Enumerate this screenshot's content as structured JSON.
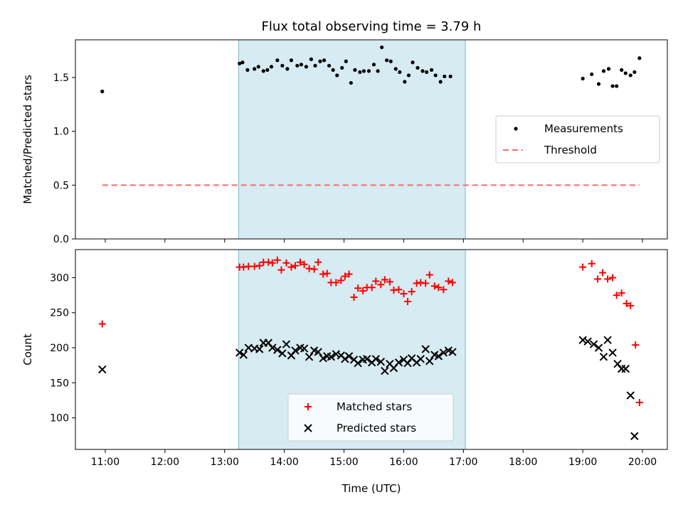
{
  "chart_data": {
    "type": "scatter",
    "title": "Flux total observing time = 3.79 h",
    "xlabel": "Time (UTC)",
    "x_unit": "hours UTC",
    "xlim": [
      "10:30",
      "20:25"
    ],
    "x_ticks": [
      {
        "value": "11:00",
        "label": "11:00"
      },
      {
        "value": "12:00",
        "label": "12:00"
      },
      {
        "value": "13:00",
        "label": "13:00"
      },
      {
        "value": "14:00",
        "label": "14:00"
      },
      {
        "value": "15:00",
        "label": "15:00"
      },
      {
        "value": "16:00",
        "label": "16:00"
      },
      {
        "value": "17:00",
        "label": "17:00"
      },
      {
        "value": "18:00",
        "label": "18:00"
      },
      {
        "value": "19:00",
        "label": "19:00"
      },
      {
        "value": "20:00",
        "label": "20:00"
      }
    ],
    "highlight_span": {
      "from": "13:14",
      "to": "17:02",
      "color": "#add8e6"
    },
    "grid": false,
    "panels": [
      {
        "id": "ratio",
        "ylabel": "Matched/Predicted stars",
        "ylim": [
          0,
          1.85
        ],
        "y_ticks": [
          "0.0",
          "0.5",
          "1.0",
          "1.5"
        ],
        "legend_position": "center-right",
        "series": [
          {
            "name": "Measurements",
            "marker": "dot",
            "color": "#000000",
            "points": [
              [
                "10:57",
                1.37
              ],
              [
                "13:15",
                1.63
              ],
              [
                "13:18",
                1.64
              ],
              [
                "13:23",
                1.57
              ],
              [
                "13:30",
                1.58
              ],
              [
                "13:34",
                1.6
              ],
              [
                "13:39",
                1.56
              ],
              [
                "13:43",
                1.57
              ],
              [
                "13:47",
                1.6
              ],
              [
                "13:53",
                1.66
              ],
              [
                "13:58",
                1.61
              ],
              [
                "14:03",
                1.58
              ],
              [
                "14:07",
                1.66
              ],
              [
                "14:13",
                1.61
              ],
              [
                "14:17",
                1.62
              ],
              [
                "14:22",
                1.6
              ],
              [
                "14:27",
                1.67
              ],
              [
                "14:31",
                1.61
              ],
              [
                "14:36",
                1.65
              ],
              [
                "14:40",
                1.66
              ],
              [
                "14:45",
                1.61
              ],
              [
                "14:49",
                1.57
              ],
              [
                "14:53",
                1.52
              ],
              [
                "14:58",
                1.59
              ],
              [
                "15:02",
                1.65
              ],
              [
                "15:07",
                1.45
              ],
              [
                "15:11",
                1.57
              ],
              [
                "15:16",
                1.55
              ],
              [
                "15:20",
                1.56
              ],
              [
                "15:25",
                1.56
              ],
              [
                "15:30",
                1.62
              ],
              [
                "15:34",
                1.56
              ],
              [
                "15:38",
                1.78
              ],
              [
                "15:43",
                1.66
              ],
              [
                "15:47",
                1.65
              ],
              [
                "15:52",
                1.58
              ],
              [
                "15:56",
                1.55
              ],
              [
                "16:01",
                1.46
              ],
              [
                "16:05",
                1.52
              ],
              [
                "16:09",
                1.64
              ],
              [
                "16:14",
                1.59
              ],
              [
                "16:19",
                1.56
              ],
              [
                "16:23",
                1.55
              ],
              [
                "16:28",
                1.57
              ],
              [
                "16:32",
                1.52
              ],
              [
                "16:37",
                1.46
              ],
              [
                "16:41",
                1.51
              ],
              [
                "16:47",
                1.51
              ],
              [
                "19:00",
                1.49
              ],
              [
                "19:09",
                1.53
              ],
              [
                "19:16",
                1.44
              ],
              [
                "19:21",
                1.56
              ],
              [
                "19:26",
                1.58
              ],
              [
                "19:30",
                1.42
              ],
              [
                "19:34",
                1.42
              ],
              [
                "19:39",
                1.57
              ],
              [
                "19:43",
                1.54
              ],
              [
                "19:48",
                1.52
              ],
              [
                "19:52",
                1.55
              ],
              [
                "19:57",
                1.68
              ]
            ]
          },
          {
            "name": "Threshold",
            "marker": "dashed-line",
            "color": "#ff6a6a",
            "points": [
              [
                "10:57",
                0.5
              ],
              [
                "19:57",
                0.5
              ]
            ]
          }
        ]
      },
      {
        "id": "counts",
        "ylabel": "Count",
        "ylim": [
          55,
          340
        ],
        "y_ticks": [
          "100",
          "150",
          "200",
          "250",
          "300"
        ],
        "legend_position": "lower-center",
        "series": [
          {
            "name": "Matched stars",
            "marker": "plus",
            "color": "#ff0000",
            "points": [
              [
                "10:57",
                234
              ],
              [
                "13:15",
                315
              ],
              [
                "13:19",
                315
              ],
              [
                "13:24",
                316
              ],
              [
                "13:30",
                316
              ],
              [
                "13:35",
                317
              ],
              [
                "13:39",
                322
              ],
              [
                "13:44",
                322
              ],
              [
                "13:48",
                321
              ],
              [
                "13:53",
                325
              ],
              [
                "13:57",
                311
              ],
              [
                "14:02",
                321
              ],
              [
                "14:07",
                315
              ],
              [
                "14:11",
                317
              ],
              [
                "14:16",
                322
              ],
              [
                "14:20",
                319
              ],
              [
                "14:25",
                313
              ],
              [
                "14:30",
                312
              ],
              [
                "14:34",
                322
              ],
              [
                "14:39",
                305
              ],
              [
                "14:43",
                306
              ],
              [
                "14:47",
                293
              ],
              [
                "14:52",
                293
              ],
              [
                "14:57",
                296
              ],
              [
                "15:01",
                302
              ],
              [
                "15:05",
                305
              ],
              [
                "15:10",
                272
              ],
              [
                "15:14",
                285
              ],
              [
                "15:19",
                281
              ],
              [
                "15:23",
                286
              ],
              [
                "15:28",
                286
              ],
              [
                "15:32",
                295
              ],
              [
                "15:37",
                290
              ],
              [
                "15:41",
                297
              ],
              [
                "15:46",
                294
              ],
              [
                "15:50",
                282
              ],
              [
                "15:55",
                283
              ],
              [
                "16:00",
                277
              ],
              [
                "16:04",
                266
              ],
              [
                "16:08",
                280
              ],
              [
                "16:13",
                292
              ],
              [
                "16:17",
                293
              ],
              [
                "16:22",
                292
              ],
              [
                "16:26",
                304
              ],
              [
                "16:31",
                288
              ],
              [
                "16:35",
                286
              ],
              [
                "16:40",
                283
              ],
              [
                "16:45",
                295
              ],
              [
                "16:49",
                293
              ],
              [
                "19:00",
                315
              ],
              [
                "19:09",
                320
              ],
              [
                "19:15",
                298
              ],
              [
                "19:20",
                307
              ],
              [
                "19:25",
                298
              ],
              [
                "19:30",
                300
              ],
              [
                "19:34",
                275
              ],
              [
                "19:39",
                278
              ],
              [
                "19:44",
                263
              ],
              [
                "19:48",
                260
              ],
              [
                "19:53",
                204
              ],
              [
                "19:57",
                122
              ]
            ]
          },
          {
            "name": "Predicted stars",
            "marker": "x",
            "color": "#000000",
            "points": [
              [
                "10:57",
                169
              ],
              [
                "13:15",
                193
              ],
              [
                "13:19",
                190
              ],
              [
                "13:24",
                200
              ],
              [
                "13:30",
                199
              ],
              [
                "13:35",
                198
              ],
              [
                "13:39",
                207
              ],
              [
                "13:44",
                207
              ],
              [
                "13:48",
                200
              ],
              [
                "13:53",
                197
              ],
              [
                "13:58",
                192
              ],
              [
                "14:02",
                205
              ],
              [
                "14:07",
                189
              ],
              [
                "14:11",
                196
              ],
              [
                "14:16",
                200
              ],
              [
                "14:20",
                199
              ],
              [
                "14:25",
                187
              ],
              [
                "14:30",
                196
              ],
              [
                "14:34",
                194
              ],
              [
                "14:39",
                185
              ],
              [
                "14:43",
                188
              ],
              [
                "14:47",
                187
              ],
              [
                "14:52",
                191
              ],
              [
                "14:57",
                189
              ],
              [
                "15:01",
                184
              ],
              [
                "15:05",
                188
              ],
              [
                "15:10",
                183
              ],
              [
                "15:14",
                178
              ],
              [
                "15:19",
                183
              ],
              [
                "15:23",
                184
              ],
              [
                "15:28",
                179
              ],
              [
                "15:32",
                184
              ],
              [
                "15:37",
                180
              ],
              [
                "15:41",
                167
              ],
              [
                "15:46",
                177
              ],
              [
                "15:50",
                171
              ],
              [
                "15:55",
                179
              ],
              [
                "16:00",
                183
              ],
              [
                "16:04",
                178
              ],
              [
                "16:08",
                185
              ],
              [
                "16:13",
                179
              ],
              [
                "16:17",
                184
              ],
              [
                "16:22",
                198
              ],
              [
                "16:26",
                181
              ],
              [
                "16:31",
                190
              ],
              [
                "16:35",
                188
              ],
              [
                "16:40",
                193
              ],
              [
                "16:45",
                196
              ],
              [
                "16:49",
                194
              ],
              [
                "19:00",
                211
              ],
              [
                "19:05",
                209
              ],
              [
                "19:11",
                205
              ],
              [
                "19:16",
                200
              ],
              [
                "19:21",
                187
              ],
              [
                "19:25",
                211
              ],
              [
                "19:30",
                193
              ],
              [
                "19:35",
                177
              ],
              [
                "19:39",
                170
              ],
              [
                "19:43",
                170
              ],
              [
                "19:48",
                132
              ],
              [
                "19:52",
                74
              ]
            ]
          }
        ]
      }
    ]
  }
}
